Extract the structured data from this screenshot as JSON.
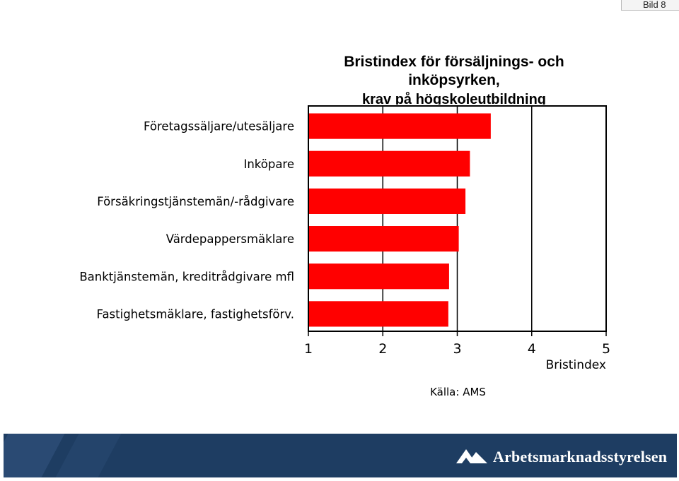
{
  "slide_label": "Bild 8",
  "chart_data": {
    "type": "bar",
    "orientation": "horizontal",
    "title": "Bristindex för försäljnings- och inköpsyrken,",
    "subtitle": "krav på högskoleutbildning",
    "categories": [
      "Företagssäljare/utesäljare",
      "Inköpare",
      "Försäkringstjänstemän/-rådgivare",
      "Värdepappersmäklare",
      "Banktjänstemän, kreditrådgivare mfl",
      "Fastighetsmäklare, fastighetsförv."
    ],
    "values": [
      3.45,
      3.17,
      3.11,
      3.02,
      2.89,
      2.88
    ],
    "xlabel": "Bristindex",
    "xlim": [
      1,
      5
    ],
    "xticks": [
      "1",
      "2",
      "3",
      "4",
      "5"
    ],
    "bar_color": "#ff0000",
    "grid": true,
    "legend": "none"
  },
  "source": "Källa: AMS",
  "footer": {
    "org_name": "Arbetsmarknadsstyrelsen",
    "logo_icon": "ams-logo-icon",
    "background": "#1e3d62"
  }
}
